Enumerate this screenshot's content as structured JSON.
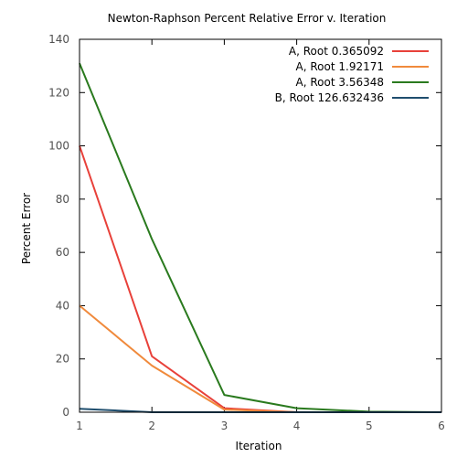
{
  "chart_data": {
    "type": "line",
    "title": "Newton-Raphson Percent Relative Error v. Iteration",
    "xlabel": "Iteration",
    "ylabel": "Percent Error",
    "xlim": [
      1,
      6
    ],
    "ylim": [
      0,
      140
    ],
    "xticks": [
      1,
      2,
      3,
      4,
      5,
      6
    ],
    "yticks": [
      0,
      20,
      40,
      60,
      80,
      100,
      120,
      140
    ],
    "grid": false,
    "legend_position": "top-right",
    "series": [
      {
        "name": "A, Root 0.365092",
        "color": "#e8413a",
        "x": [
          1,
          2,
          3,
          4
        ],
        "y": [
          100,
          21,
          1.5,
          0
        ]
      },
      {
        "name": "A, Root 1.92171",
        "color": "#f08a3c",
        "x": [
          1,
          2,
          3,
          4
        ],
        "y": [
          40,
          17.5,
          1,
          0
        ]
      },
      {
        "name": "A, Root 3.56348",
        "color": "#2a7a1e",
        "x": [
          1,
          2,
          3,
          4,
          5,
          6
        ],
        "y": [
          131,
          65,
          6.5,
          1.5,
          0.2,
          0
        ]
      },
      {
        "name": "B, Root 126.632436",
        "color": "#1f4e6e",
        "x": [
          1,
          2,
          3,
          4,
          5,
          6
        ],
        "y": [
          1.3,
          0,
          0,
          0,
          0,
          0
        ]
      }
    ]
  }
}
